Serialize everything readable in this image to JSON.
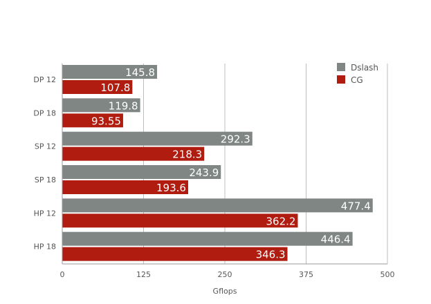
{
  "chart_data": {
    "type": "bar",
    "orientation": "horizontal",
    "categories": [
      "DP 12",
      "DP 18",
      "SP 12",
      "SP 18",
      "HP 12",
      "HP 18"
    ],
    "series": [
      {
        "name": "Dslash",
        "color": "#808683",
        "values": [
          145.8,
          119.8,
          292.3,
          243.9,
          477.4,
          446.4
        ],
        "labels": [
          "145.8",
          "119.8",
          "292.3",
          "243.9",
          "477.4",
          "446.4"
        ]
      },
      {
        "name": "CG",
        "color": "#b01c10",
        "values": [
          107.8,
          93.55,
          218.3,
          193.6,
          362.2,
          346.3
        ],
        "labels": [
          "107.8",
          "93.55",
          "218.3",
          "193.6",
          "362.2",
          "346.3"
        ]
      }
    ],
    "xlabel": "Gflops",
    "xlim": [
      0,
      500
    ],
    "xticks": [
      "0",
      "125",
      "250",
      "375",
      "500"
    ],
    "grid": true,
    "legend": "top-right"
  }
}
